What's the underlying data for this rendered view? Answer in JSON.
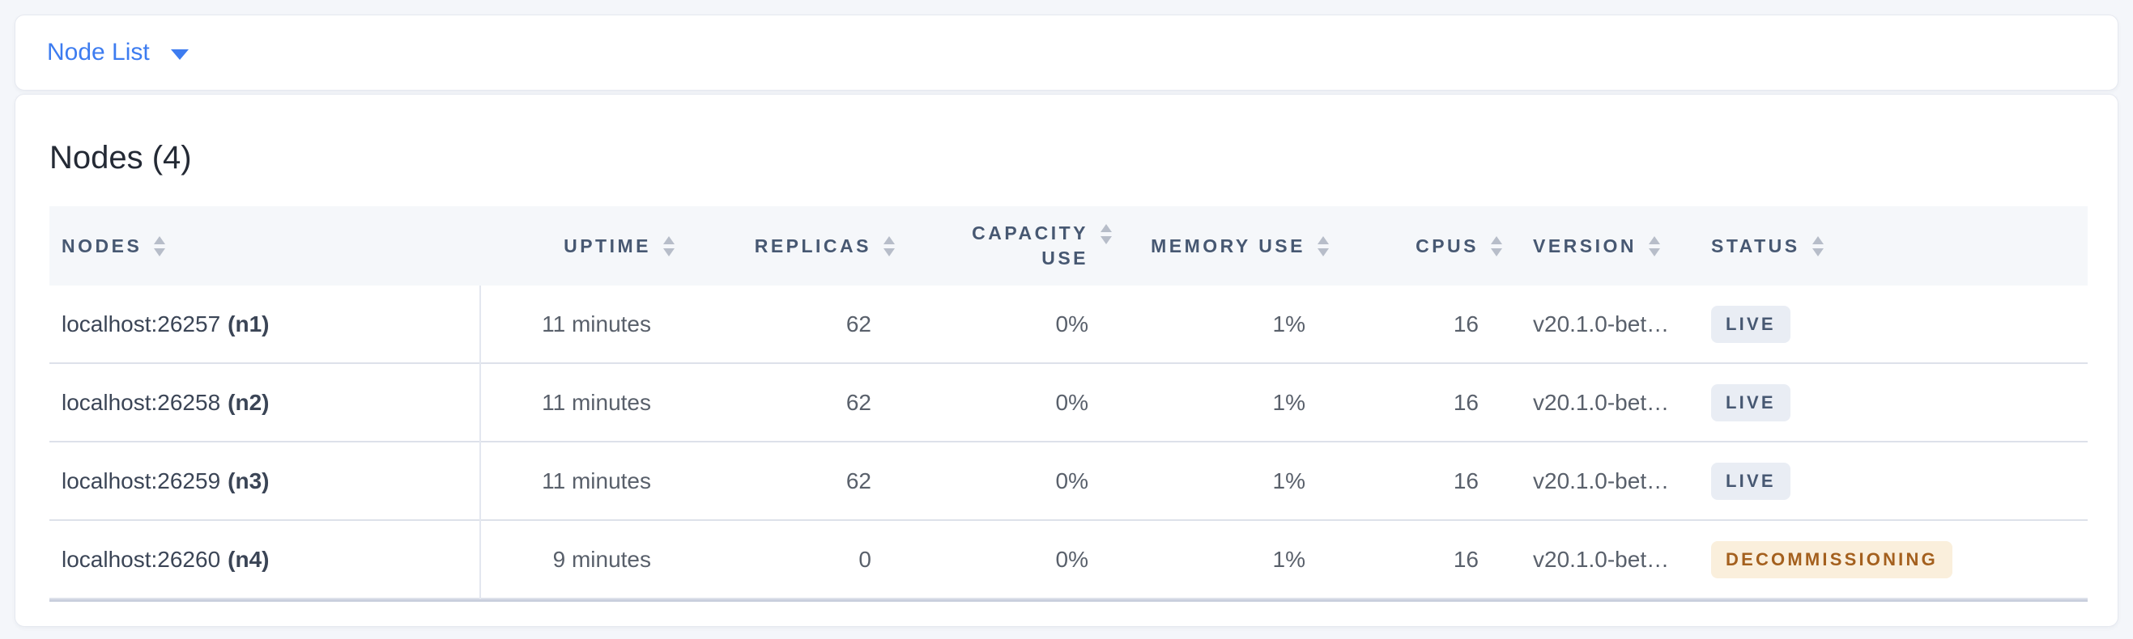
{
  "header_bar": {
    "view_selector": {
      "label": "Node List",
      "caret_icon": "caret-down"
    }
  },
  "panel": {
    "title": "Nodes (4)",
    "table": {
      "columns": [
        {
          "id": "nodes",
          "label": "NODES",
          "align": "left"
        },
        {
          "id": "uptime",
          "label": "UPTIME",
          "align": "right"
        },
        {
          "id": "replicas",
          "label": "REPLICAS",
          "align": "right"
        },
        {
          "id": "capacity_use",
          "label": "CAPACITY USE",
          "align": "right"
        },
        {
          "id": "memory_use",
          "label": "MEMORY USE",
          "align": "right"
        },
        {
          "id": "cpus",
          "label": "CPUS",
          "align": "right"
        },
        {
          "id": "version",
          "label": "VERSION",
          "align": "left"
        },
        {
          "id": "status",
          "label": "STATUS",
          "align": "left"
        }
      ],
      "rows": [
        {
          "address": "localhost:26257",
          "node_id": "(n1)",
          "uptime": "11 minutes",
          "replicas": "62",
          "capacity_use": "0%",
          "memory_use": "1%",
          "cpus": "16",
          "version": "v20.1.0-bet…",
          "status_label": "LIVE",
          "status_type": "live"
        },
        {
          "address": "localhost:26258",
          "node_id": "(n2)",
          "uptime": "11 minutes",
          "replicas": "62",
          "capacity_use": "0%",
          "memory_use": "1%",
          "cpus": "16",
          "version": "v20.1.0-bet…",
          "status_label": "LIVE",
          "status_type": "live"
        },
        {
          "address": "localhost:26259",
          "node_id": "(n3)",
          "uptime": "11 minutes",
          "replicas": "62",
          "capacity_use": "0%",
          "memory_use": "1%",
          "cpus": "16",
          "version": "v20.1.0-bet…",
          "status_label": "LIVE",
          "status_type": "live"
        },
        {
          "address": "localhost:26260",
          "node_id": "(n4)",
          "uptime": "9 minutes",
          "replicas": "0",
          "capacity_use": "0%",
          "memory_use": "1%",
          "cpus": "16",
          "version": "v20.1.0-bet…",
          "status_label": "DECOMMISSIONING",
          "status_type": "decommissioning"
        }
      ]
    }
  },
  "colors": {
    "accent_blue": "#3d7cf0",
    "live_badge_bg": "#e9edf4",
    "live_badge_text": "#475872",
    "decommissioning_badge_bg": "#faefdc",
    "decommissioning_badge_text": "#a4601e"
  }
}
